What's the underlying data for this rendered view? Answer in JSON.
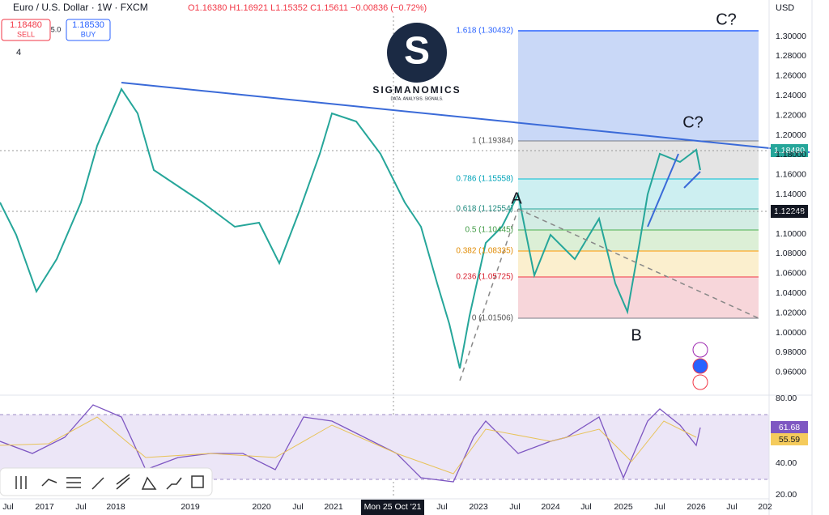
{
  "header": {
    "symbol": "Euro / U.S. Dollar · 1W · FXCM",
    "ohlc": "O1.16380 H1.16921 L1.15352 C1.15611 −0.00836 (−0.72%)",
    "sell_price": "1.18480",
    "sell": "SELL",
    "spread": "5.0",
    "buy_price": "1.18530",
    "buy": "BUY",
    "indicators": "4",
    "currency": "USD"
  },
  "logo": {
    "name": "SIGMANOMICS",
    "tagline": "DATA. ANALYSIS. SIGNALS."
  },
  "price_axis": [
    "1.30000",
    "1.28000",
    "1.26000",
    "1.24000",
    "1.22000",
    "1.20000",
    "1.18000",
    "1.16000",
    "1.14000",
    "1.12000",
    "1.10000",
    "1.08000",
    "1.06000",
    "1.04000",
    "1.02000",
    "1.00000",
    "0.98000",
    "0.96000"
  ],
  "price_badges": {
    "last": "1.18480",
    "cursor": "1.12248"
  },
  "fib_levels": [
    "1.618 (1.30432)",
    "1 (1.19384)",
    "0.786 (1.15558)",
    "0.618 (1.12554)",
    "0.5 (1.10445)",
    "0.382 (1.08335)",
    "0.236 (1.05725)",
    "0 (1.01506)"
  ],
  "annotations": {
    "a": "A",
    "b": "B",
    "c_top": "C?",
    "c_near": "C?"
  },
  "rsi_axis": [
    "80.00",
    "40.00",
    "20.00"
  ],
  "rsi_badges": [
    "61.68",
    "55.59"
  ],
  "time_axis": [
    "Jul",
    "2017",
    "Jul",
    "2018",
    "2019",
    "2020",
    "Jul",
    "2021",
    "Mon 25 Oct '21",
    "Jul",
    "2023",
    "Jul",
    "2024",
    "Jul",
    "2025",
    "Jul",
    "2026",
    "Jul",
    "202"
  ]
}
